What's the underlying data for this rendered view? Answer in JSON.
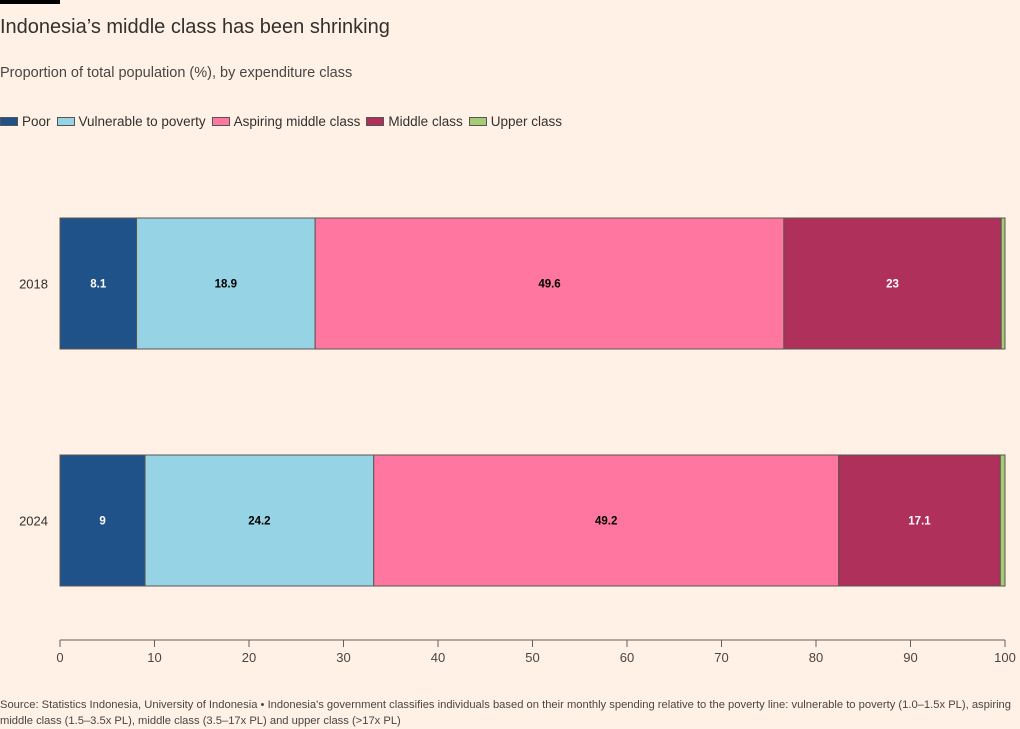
{
  "header": {
    "title": "Indonesia’s middle class has been shrinking",
    "subtitle": "Proportion of total population (%), by expenditure class"
  },
  "chart_data": {
    "type": "bar",
    "orientation": "horizontal-stacked",
    "title": "Indonesia’s middle class has been shrinking",
    "subtitle": "Proportion of total population (%), by expenditure class",
    "categories": [
      "2018",
      "2024"
    ],
    "series": [
      {
        "name": "Poor",
        "color": "#1f5289",
        "values": [
          8.1,
          9
        ]
      },
      {
        "name": "Vulnerable to poverty",
        "color": "#96d3e4",
        "values": [
          18.9,
          24.2
        ]
      },
      {
        "name": "Aspiring middle class",
        "color": "#ff77a1",
        "values": [
          49.6,
          49.2
        ]
      },
      {
        "name": "Middle class",
        "color": "#b0305c",
        "values": [
          23,
          17.1
        ]
      },
      {
        "name": "Upper class",
        "color": "#a6ca75",
        "values": [
          0.4,
          0.5
        ]
      }
    ],
    "data_labels": [
      [
        "8.1",
        "18.9",
        "49.6",
        "23"
      ],
      [
        "9",
        "24.2",
        "49.2",
        "17.1"
      ]
    ],
    "xlim": [
      0,
      100
    ],
    "xticks": [
      "0",
      "10",
      "20",
      "30",
      "40",
      "50",
      "60",
      "70",
      "80",
      "90",
      "100"
    ],
    "xlabel": "",
    "ylabel": "",
    "legend": "top-left",
    "grid": false
  },
  "footer": {
    "source": "Source: Statistics Indonesia, University of Indonesia • Indonesia's government classifies individuals based on their monthly spending relative to the poverty line: vulnerable to poverty (1.0–1.5x PL), aspiring middle class (1.5–3.5x PL), middle class (3.5–17x PL) and upper class (>17x PL)"
  }
}
